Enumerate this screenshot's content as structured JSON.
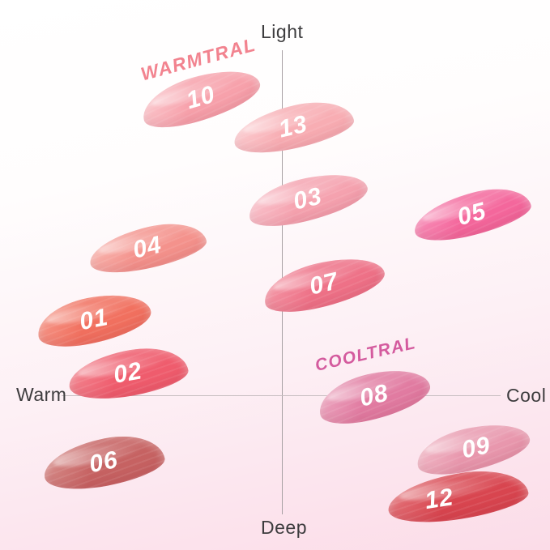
{
  "axes": {
    "light": "Light",
    "deep": "Deep",
    "warm": "Warm",
    "cool": "Cool"
  },
  "groups": {
    "warmtral": {
      "label": "WARMTRAL",
      "color": "#f2838f"
    },
    "cooltral": {
      "label": "COOLTRAL",
      "color": "#d45b9e"
    }
  },
  "swatches": [
    {
      "number": "10",
      "group": "WARMTRAL",
      "color": "#f7a1ab",
      "highlight": "#fbc9ce"
    },
    {
      "number": "13",
      "group": "WARMTRAL",
      "color": "#f8adb3",
      "highlight": "#fccfd3"
    },
    {
      "number": "03",
      "group": "WARMTRAL",
      "color": "#f5a2af",
      "highlight": "#fac6cf"
    },
    {
      "number": "05",
      "group": "COOLTRAL",
      "color": "#f4679c",
      "highlight": "#f892bb"
    },
    {
      "number": "04",
      "group": "WARMTRAL",
      "color": "#f4928c",
      "highlight": "#f9b7b1"
    },
    {
      "number": "07",
      "group": "COOLTRAL",
      "color": "#ee7187",
      "highlight": "#f49aa8"
    },
    {
      "number": "01",
      "group": "WARMTRAL",
      "color": "#f1705f",
      "highlight": "#f69b8d"
    },
    {
      "number": "02",
      "group": "WARMTRAL",
      "color": "#ef5c6d",
      "highlight": "#f48a94"
    },
    {
      "number": "08",
      "group": "COOLTRAL",
      "color": "#e17ba1",
      "highlight": "#edaac2"
    },
    {
      "number": "06",
      "group": "WARMTRAL",
      "color": "#c66262",
      "highlight": "#d8908d"
    },
    {
      "number": "09",
      "group": "COOLTRAL",
      "color": "#e897ad",
      "highlight": "#f2bcc9"
    },
    {
      "number": "12",
      "group": "COOLTRAL",
      "color": "#d8454f",
      "highlight": "#e4767c"
    }
  ],
  "chart_data": {
    "type": "scatter",
    "title": "",
    "x_axis": {
      "left_label": "Warm",
      "right_label": "Cool",
      "range": [
        -1,
        1
      ]
    },
    "y_axis": {
      "top_label": "Light",
      "bottom_label": "Deep",
      "range": [
        -1,
        1
      ]
    },
    "grid": false,
    "legend": "group labels WARMTRAL and COOLTRAL placed inline near swatches 10 and 08",
    "points": [
      {
        "label": "10",
        "group": "WARMTRAL",
        "color": "#f7a1ab",
        "warm_cool": -0.37,
        "light_deep": 0.86
      },
      {
        "label": "13",
        "group": "WARMTRAL",
        "color": "#f8adb3",
        "warm_cool": 0.05,
        "light_deep": 0.78
      },
      {
        "label": "03",
        "group": "WARMTRAL",
        "color": "#f5a2af",
        "warm_cool": 0.12,
        "light_deep": 0.57
      },
      {
        "label": "05",
        "group": "COOLTRAL",
        "color": "#f4679c",
        "warm_cool": 0.87,
        "light_deep": 0.52
      },
      {
        "label": "04",
        "group": "WARMTRAL",
        "color": "#f4928c",
        "warm_cool": -0.61,
        "light_deep": 0.43
      },
      {
        "label": "07",
        "group": "COOLTRAL",
        "color": "#ee7187",
        "warm_cool": 0.19,
        "light_deep": 0.32
      },
      {
        "label": "01",
        "group": "WARMTRAL",
        "color": "#f1705f",
        "warm_cool": -0.86,
        "light_deep": 0.22
      },
      {
        "label": "02",
        "group": "WARMTRAL",
        "color": "#ef5c6d",
        "warm_cool": -0.7,
        "light_deep": 0.06
      },
      {
        "label": "08",
        "group": "COOLTRAL",
        "color": "#e17ba1",
        "warm_cool": 0.42,
        "light_deep": 0.0
      },
      {
        "label": "06",
        "group": "WARMTRAL",
        "color": "#c66262",
        "warm_cool": -0.81,
        "light_deep": -0.56
      },
      {
        "label": "09",
        "group": "COOLTRAL",
        "color": "#e897ad",
        "warm_cool": 0.88,
        "light_deep": -0.5
      },
      {
        "label": "12",
        "group": "COOLTRAL",
        "color": "#d8454f",
        "warm_cool": 0.79,
        "light_deep": -0.84
      }
    ]
  }
}
